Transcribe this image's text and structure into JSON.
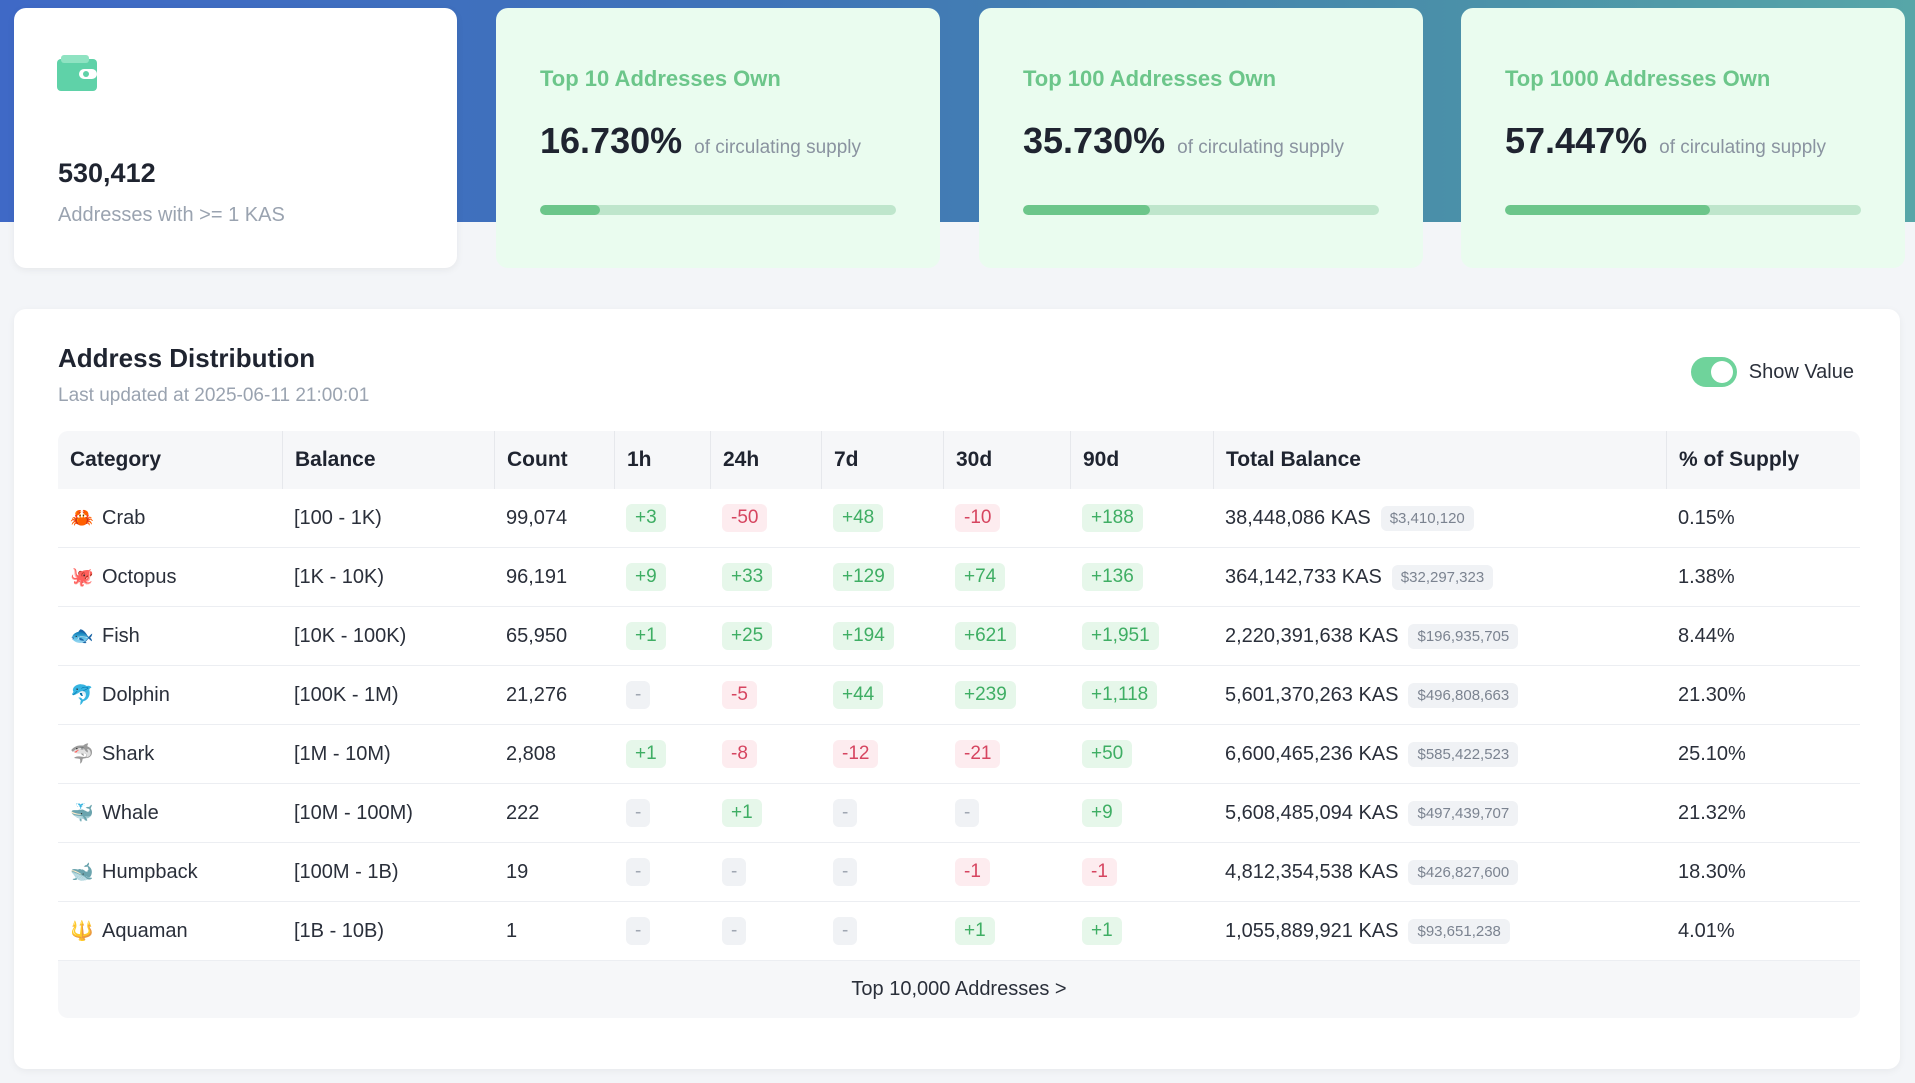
{
  "summary": {
    "address_count": "530,412",
    "address_label": "Addresses with >= 1 KAS"
  },
  "top_cards": [
    {
      "title": "Top 10 Addresses Own",
      "pct": "16.730%",
      "sub": "of circulating supply",
      "fill": 0.1673
    },
    {
      "title": "Top 100 Addresses Own",
      "pct": "35.730%",
      "sub": "of circulating supply",
      "fill": 0.3573
    },
    {
      "title": "Top 1000 Addresses Own",
      "pct": "57.447%",
      "sub": "of circulating supply",
      "fill": 0.57447
    }
  ],
  "panel": {
    "title": "Address Distribution",
    "updated": "Last updated at 2025-06-11 21:00:01",
    "toggle_label": "Show Value",
    "toggle_on": true
  },
  "table": {
    "headers": [
      "Category",
      "Balance",
      "Count",
      "1h",
      "24h",
      "7d",
      "30d",
      "90d",
      "Total Balance",
      "% of Supply"
    ],
    "rows": [
      {
        "emoji": "🦀",
        "category": "Crab",
        "balance": "[100 - 1K)",
        "count": "99,074",
        "h1": "+3",
        "h24": "-50",
        "d7": "+48",
        "d30": "-10",
        "d90": "+188",
        "total": "38,448,086 KAS",
        "usd": "$3,410,120",
        "pct": "0.15%"
      },
      {
        "emoji": "🐙",
        "category": "Octopus",
        "balance": "[1K - 10K)",
        "count": "96,191",
        "h1": "+9",
        "h24": "+33",
        "d7": "+129",
        "d30": "+74",
        "d90": "+136",
        "total": "364,142,733 KAS",
        "usd": "$32,297,323",
        "pct": "1.38%"
      },
      {
        "emoji": "🐟",
        "category": "Fish",
        "balance": "[10K - 100K)",
        "count": "65,950",
        "h1": "+1",
        "h24": "+25",
        "d7": "+194",
        "d30": "+621",
        "d90": "+1,951",
        "total": "2,220,391,638 KAS",
        "usd": "$196,935,705",
        "pct": "8.44%"
      },
      {
        "emoji": "🐬",
        "category": "Dolphin",
        "balance": "[100K - 1M)",
        "count": "21,276",
        "h1": "-",
        "h24": "-5",
        "d7": "+44",
        "d30": "+239",
        "d90": "+1,118",
        "total": "5,601,370,263 KAS",
        "usd": "$496,808,663",
        "pct": "21.30%"
      },
      {
        "emoji": "🦈",
        "category": "Shark",
        "balance": "[1M - 10M)",
        "count": "2,808",
        "h1": "+1",
        "h24": "-8",
        "d7": "-12",
        "d30": "-21",
        "d90": "+50",
        "total": "6,600,465,236 KAS",
        "usd": "$585,422,523",
        "pct": "25.10%"
      },
      {
        "emoji": "🐳",
        "category": "Whale",
        "balance": "[10M - 100M)",
        "count": "222",
        "h1": "-",
        "h24": "+1",
        "d7": "-",
        "d30": "-",
        "d90": "+9",
        "total": "5,608,485,094 KAS",
        "usd": "$497,439,707",
        "pct": "21.32%"
      },
      {
        "emoji": "🐋",
        "category": "Humpback",
        "balance": "[100M - 1B)",
        "count": "19",
        "h1": "-",
        "h24": "-",
        "d7": "-",
        "d30": "-1",
        "d90": "-1",
        "total": "4,812,354,538 KAS",
        "usd": "$426,827,600",
        "pct": "18.30%"
      },
      {
        "emoji": "🔱",
        "category": "Aquaman",
        "balance": "[1B - 10B)",
        "count": "1",
        "h1": "-",
        "h24": "-",
        "d7": "-",
        "d30": "+1",
        "d90": "+1",
        "total": "1,055,889,921 KAS",
        "usd": "$93,651,238",
        "pct": "4.01%"
      }
    ],
    "footer_link": "Top 10,000 Addresses >"
  },
  "colors": {
    "accent_green": "#6cc68a",
    "positive": "#3fae64",
    "negative": "#d64560",
    "neutral": "#a0a7b2"
  }
}
